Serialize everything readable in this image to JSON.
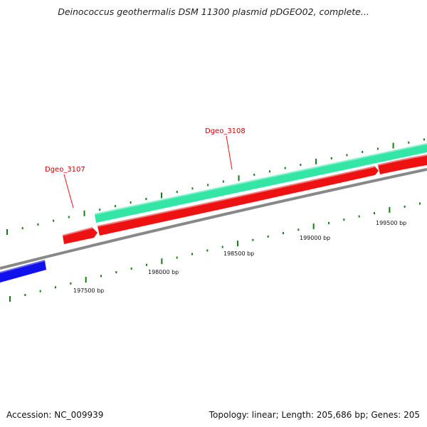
{
  "title": "Deinococcus geothermalis DSM 11300 plasmid pDGEO02, complete...",
  "footer": {
    "accession": "Accession: NC_009939",
    "topology": "Topology: linear; Length: 205,686 bp; Genes: 205"
  },
  "colors": {
    "backbone": "#888888",
    "forward_gene": "#33e6a6",
    "reverse_gene": "#ee1111",
    "other_gene": "#1111ee",
    "tick": "#1a7a1a",
    "label": "#cc0000"
  },
  "gene_labels": [
    {
      "name": "Dgeo_3107"
    },
    {
      "name": "Dgeo_3108"
    }
  ],
  "scale_labels": [
    "197500 bp",
    "198000 bp",
    "198500 bp",
    "199000 bp",
    "199500 bp"
  ]
}
